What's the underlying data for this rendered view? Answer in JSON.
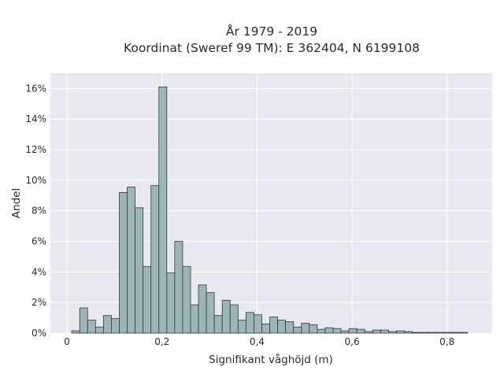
{
  "chart_data": {
    "type": "bar",
    "title": "År 1979 - 2019",
    "subtitle": "Koordinat (Sweref 99 TM): E 362404, N 6199108",
    "xlabel": "Signifikant våghöjd (m)",
    "ylabel": "Andel",
    "xlim": [
      -0.035,
      0.895
    ],
    "ylim": [
      0,
      0.17
    ],
    "grid": true,
    "x_ticks": [
      0,
      0.2,
      0.4,
      0.6,
      0.8
    ],
    "x_tick_labels": [
      "0",
      "0,2",
      "0,4",
      "0,6",
      "0,8"
    ],
    "y_ticks": [
      0,
      0.02,
      0.04,
      0.06,
      0.08,
      0.1,
      0.12,
      0.14,
      0.16
    ],
    "y_tick_labels": [
      "0%",
      "2%",
      "4%",
      "6%",
      "8%",
      "10%",
      "12%",
      "14%",
      "16%"
    ],
    "bin_start": 0.01,
    "bin_width": 0.01667,
    "values": [
      0.0015,
      0.0165,
      0.0085,
      0.004,
      0.0115,
      0.0095,
      0.092,
      0.0955,
      0.082,
      0.0435,
      0.0965,
      0.161,
      0.0395,
      0.06,
      0.0435,
      0.0185,
      0.0315,
      0.0265,
      0.0115,
      0.0215,
      0.0185,
      0.0085,
      0.0135,
      0.012,
      0.006,
      0.0105,
      0.0085,
      0.0075,
      0.004,
      0.0065,
      0.0055,
      0.0025,
      0.0035,
      0.003,
      0.0015,
      0.003,
      0.0025,
      0.001,
      0.002,
      0.002,
      0.001,
      0.0015,
      0.001,
      0.0005,
      0.0005,
      0.0005,
      0.0005,
      0.0005,
      0.0005,
      0.0005
    ],
    "colors": {
      "bar_fill": "#9db5b5",
      "bar_edge": "#2f3b3b",
      "plot_bg": "#e8e8f0",
      "grid": "#ffffff"
    }
  }
}
